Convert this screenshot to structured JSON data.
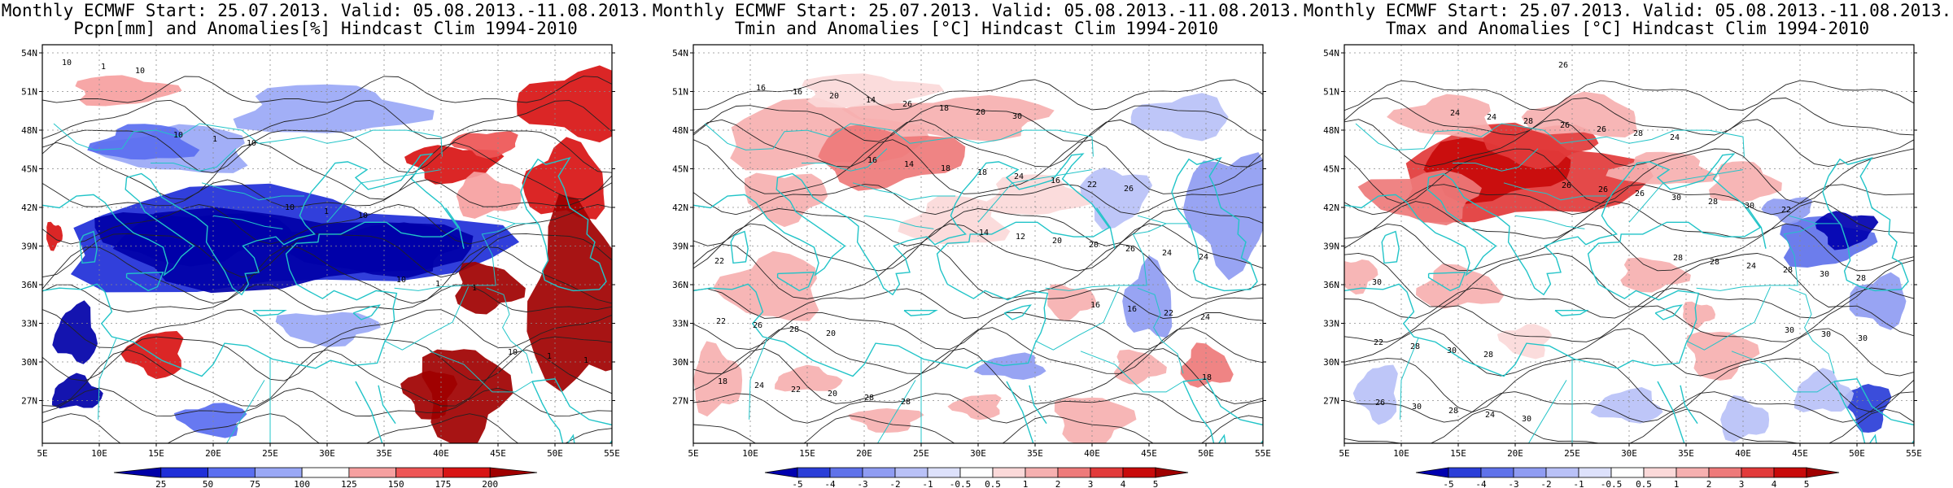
{
  "panels": [
    {
      "id": "precip",
      "title_line1": "Monthly ECMWF Start: 25.07.2013. Valid: 05.08.2013.-11.08.2013.",
      "title_line2": "Pcpn[mm] and Anomalies[%] Hindcast Clim 1994-2010",
      "colorbar": {
        "labels": [
          "25",
          "50",
          "75",
          "100",
          "125",
          "150",
          "175",
          "200"
        ],
        "colors": [
          "#0000a8",
          "#1f2fd8",
          "#5a6ef0",
          "#9aa8f6",
          "#ffffff",
          "#f6a0a0",
          "#ee5555",
          "#d81414",
          "#a00000"
        ]
      },
      "contour_labels": [
        "10",
        "10",
        "10",
        "10",
        "10",
        "1",
        "1",
        "1",
        "1",
        "1",
        "10",
        "10",
        "10",
        "1",
        "1"
      ]
    },
    {
      "id": "tmin",
      "title_line1": "Monthly ECMWF Start: 25.07.2013. Valid: 05.08.2013.-11.08.2013.",
      "title_line2": "Tmin and Anomalies [°C] Hindcast Clim 1994-2010",
      "colorbar": {
        "labels": [
          "-5",
          "-4",
          "-3",
          "-2",
          "-1",
          "-0.5",
          "0.5",
          "1",
          "2",
          "3",
          "4",
          "5"
        ],
        "colors": [
          "#0000b0",
          "#2a3ed8",
          "#5f72ea",
          "#8f9cf2",
          "#b9c1f7",
          "#dde1fb",
          "#ffffff",
          "#fbd9d9",
          "#f6b0b0",
          "#ee7a7a",
          "#e23a3a",
          "#c80a0a",
          "#a00000"
        ]
      },
      "contour_labels": [
        "16",
        "16",
        "14",
        "16",
        "18",
        "16",
        "14",
        "12",
        "16",
        "18",
        "20",
        "18",
        "20",
        "22",
        "24",
        "14",
        "18",
        "20",
        "24",
        "22",
        "26",
        "24",
        "26",
        "22",
        "20",
        "18",
        "16",
        "24",
        "26",
        "28",
        "20",
        "22",
        "24",
        "28",
        "28",
        "30",
        "26",
        "22",
        "20"
      ]
    },
    {
      "id": "tmax",
      "title_line1": "Monthly ECMWF Start: 25.07.2013. Valid: 05.08.2013.-11.08.2013.",
      "title_line2": "Tmax and Anomalies [°C] Hindcast Clim 1994-2010",
      "colorbar": {
        "labels": [
          "-5",
          "-4",
          "-3",
          "-2",
          "-1",
          "-0.5",
          "0.5",
          "1",
          "2",
          "3",
          "4",
          "5"
        ],
        "colors": [
          "#0000b0",
          "#2a3ed8",
          "#5f72ea",
          "#8f9cf2",
          "#b9c1f7",
          "#dde1fb",
          "#ffffff",
          "#fbd9d9",
          "#f6b0b0",
          "#ee7a7a",
          "#e23a3a",
          "#c80a0a",
          "#a00000"
        ]
      },
      "contour_labels": [
        "24",
        "26",
        "28",
        "30",
        "26",
        "24",
        "26",
        "28",
        "30",
        "30",
        "28",
        "26",
        "24",
        "30",
        "28",
        "26",
        "30",
        "28",
        "22",
        "24",
        "26",
        "28",
        "30",
        "28",
        "30",
        "28",
        "30",
        "28",
        "30",
        "26",
        "24",
        "22",
        "30",
        "28"
      ]
    }
  ],
  "axes": {
    "lat_labels": [
      "54N",
      "51N",
      "48N",
      "45N",
      "42N",
      "39N",
      "36N",
      "33N",
      "30N",
      "27N"
    ],
    "lon_labels": [
      "5E",
      "10E",
      "15E",
      "20E",
      "25E",
      "30E",
      "35E",
      "40E",
      "45E",
      "50E",
      "55E"
    ]
  }
}
